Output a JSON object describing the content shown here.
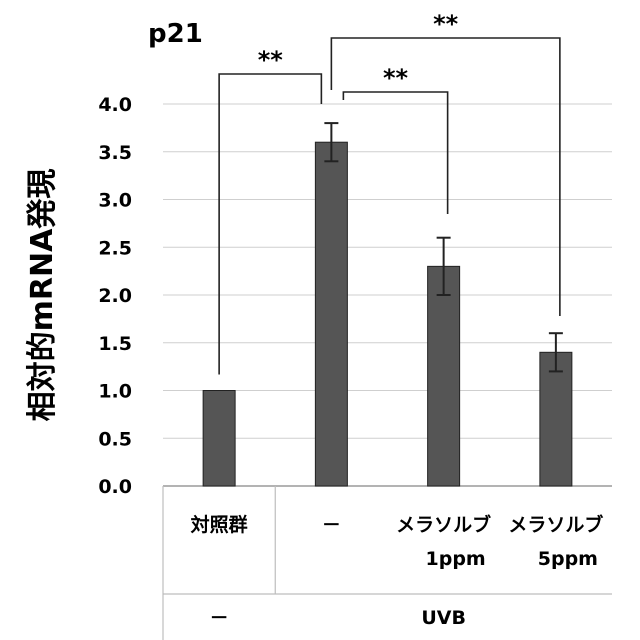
{
  "chart_data": {
    "type": "bar",
    "title": "p21",
    "ylabel": "相対的mRNA発現",
    "ylim": [
      0,
      4.0
    ],
    "yticks": [
      "0.0",
      "0.5",
      "1.0",
      "1.5",
      "2.0",
      "2.5",
      "3.0",
      "3.5",
      "4.0"
    ],
    "grid": true,
    "categories": [
      {
        "line1": "対照群",
        "line2": ""
      },
      {
        "line1": "－",
        "line2": ""
      },
      {
        "line1": "メラソルブ",
        "line2": "1ppm"
      },
      {
        "line1": "メラソルブ",
        "line2": "5ppm"
      }
    ],
    "values": [
      1.0,
      3.6,
      2.3,
      1.4
    ],
    "errors": [
      0.0,
      0.2,
      0.3,
      0.2
    ],
    "bar_color": "#555555",
    "groups": [
      {
        "label": "－",
        "span": [
          0,
          0
        ]
      },
      {
        "label": "UVB",
        "span": [
          1,
          3
        ]
      }
    ],
    "significance": [
      {
        "from": 0,
        "to": 1,
        "label": "**"
      },
      {
        "from": 1,
        "to": 2,
        "label": "**"
      },
      {
        "from": 1,
        "to": 3,
        "label": "**"
      }
    ]
  }
}
